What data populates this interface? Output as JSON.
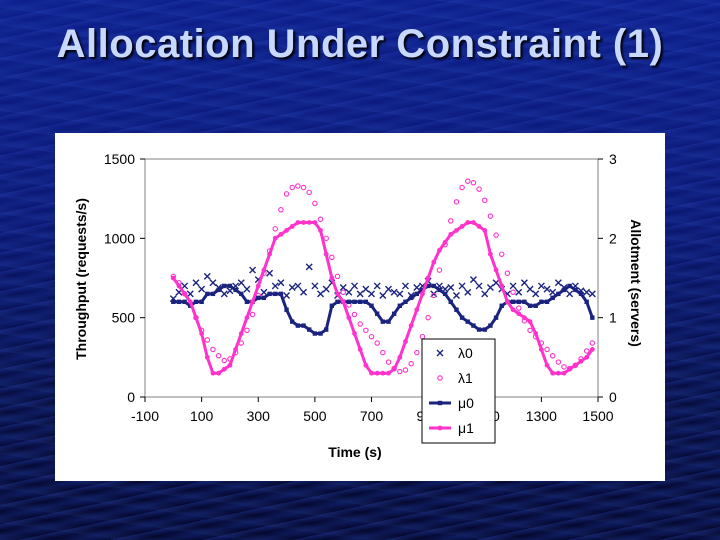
{
  "slide": {
    "title": "Allocation Under Constraint (1)"
  },
  "colors": {
    "navy": "#1a237e",
    "magenta": "#ff33cc",
    "background": "#0a1670",
    "title": "#c9d8ff"
  },
  "chart_data": {
    "type": "scatter",
    "xlabel": "Time  (s)",
    "ylabel_left": "Throughput (requests/s)",
    "ylabel_right": "Allotment (servers)",
    "xlim": [
      -100,
      1500
    ],
    "ylim_left": [
      0,
      1500
    ],
    "ylim_right": [
      0,
      3
    ],
    "xticks": [
      "-100",
      "100",
      "300",
      "500",
      "700",
      "900",
      "1100",
      "1300",
      "1500"
    ],
    "yticks_left": [
      "0",
      "500",
      "1000",
      "1500"
    ],
    "yticks_right": [
      "0",
      "1",
      "2",
      "3"
    ],
    "legend_position": "bottom-right",
    "grid": false,
    "series": [
      {
        "name": "λ0",
        "marker": "x",
        "axis": "left",
        "style": "markers",
        "x": [
          0,
          20,
          40,
          60,
          80,
          100,
          120,
          140,
          160,
          180,
          200,
          220,
          240,
          260,
          280,
          300,
          320,
          340,
          360,
          380,
          400,
          420,
          440,
          460,
          480,
          500,
          520,
          540,
          560,
          580,
          600,
          620,
          640,
          660,
          680,
          700,
          720,
          740,
          760,
          780,
          800,
          820,
          840,
          860,
          880,
          900,
          920,
          940,
          960,
          980,
          1000,
          1020,
          1040,
          1060,
          1080,
          1100,
          1120,
          1140,
          1160,
          1180,
          1200,
          1220,
          1240,
          1260,
          1280,
          1300,
          1320,
          1340,
          1360,
          1380,
          1400,
          1420,
          1440,
          1460,
          1480
        ],
        "y": [
          620,
          660,
          700,
          650,
          720,
          680,
          760,
          720,
          690,
          650,
          670,
          700,
          720,
          680,
          800,
          740,
          660,
          780,
          700,
          720,
          640,
          690,
          700,
          660,
          820,
          700,
          650,
          680,
          720,
          640,
          690,
          660,
          700,
          650,
          680,
          650,
          700,
          640,
          680,
          660,
          650,
          700,
          640,
          690,
          700,
          730,
          650,
          700,
          680,
          690,
          640,
          700,
          660,
          740,
          700,
          650,
          690,
          720,
          680,
          650,
          700,
          660,
          720,
          680,
          650,
          700,
          680,
          660,
          720,
          690,
          650,
          700,
          670,
          660,
          650
        ]
      },
      {
        "name": "λ1",
        "marker": "o",
        "axis": "left",
        "style": "markers",
        "x": [
          0,
          20,
          40,
          60,
          80,
          100,
          120,
          140,
          160,
          180,
          200,
          220,
          240,
          260,
          280,
          300,
          320,
          340,
          360,
          380,
          400,
          420,
          440,
          460,
          480,
          500,
          520,
          540,
          560,
          580,
          600,
          620,
          640,
          660,
          680,
          700,
          720,
          740,
          760,
          780,
          800,
          820,
          840,
          860,
          880,
          900,
          920,
          940,
          960,
          980,
          1000,
          1020,
          1040,
          1060,
          1080,
          1100,
          1120,
          1140,
          1160,
          1180,
          1200,
          1220,
          1240,
          1260,
          1280,
          1300,
          1320,
          1340,
          1360,
          1380,
          1400,
          1420,
          1440,
          1460,
          1480
        ],
        "y": [
          760,
          720,
          650,
          580,
          500,
          420,
          360,
          300,
          260,
          230,
          240,
          280,
          340,
          420,
          520,
          640,
          780,
          920,
          1060,
          1180,
          1280,
          1320,
          1330,
          1320,
          1290,
          1220,
          1120,
          1000,
          880,
          760,
          660,
          580,
          520,
          460,
          420,
          380,
          340,
          280,
          220,
          180,
          160,
          170,
          210,
          280,
          380,
          500,
          640,
          800,
          960,
          1110,
          1230,
          1320,
          1360,
          1350,
          1310,
          1240,
          1140,
          1020,
          900,
          780,
          660,
          560,
          480,
          420,
          380,
          340,
          300,
          260,
          220,
          190,
          180,
          200,
          240,
          290,
          340
        ]
      },
      {
        "name": "μ0",
        "marker": "square",
        "axis": "right",
        "style": "line",
        "x": [
          0,
          20,
          40,
          60,
          80,
          100,
          120,
          140,
          160,
          180,
          200,
          220,
          240,
          260,
          280,
          300,
          320,
          340,
          360,
          380,
          400,
          420,
          440,
          460,
          480,
          500,
          520,
          540,
          560,
          580,
          600,
          620,
          640,
          660,
          680,
          700,
          720,
          740,
          760,
          780,
          800,
          820,
          840,
          860,
          880,
          900,
          920,
          940,
          960,
          980,
          1000,
          1020,
          1040,
          1060,
          1080,
          1100,
          1120,
          1140,
          1160,
          1180,
          1200,
          1220,
          1240,
          1260,
          1280,
          1300,
          1320,
          1340,
          1360,
          1380,
          1400,
          1420,
          1440,
          1460,
          1480
        ],
        "y": [
          1.2,
          1.2,
          1.2,
          1.15,
          1.2,
          1.2,
          1.3,
          1.3,
          1.35,
          1.4,
          1.4,
          1.35,
          1.3,
          1.2,
          1.2,
          1.25,
          1.25,
          1.3,
          1.3,
          1.3,
          1.1,
          0.95,
          0.9,
          0.9,
          0.85,
          0.8,
          0.8,
          0.85,
          1.15,
          1.2,
          1.2,
          1.2,
          1.2,
          1.2,
          1.2,
          1.15,
          1.05,
          0.95,
          0.95,
          1.05,
          1.15,
          1.2,
          1.25,
          1.3,
          1.35,
          1.4,
          1.4,
          1.35,
          1.3,
          1.2,
          1.1,
          1.0,
          0.95,
          0.9,
          0.85,
          0.85,
          0.9,
          1.0,
          1.15,
          1.2,
          1.2,
          1.2,
          1.2,
          1.15,
          1.15,
          1.2,
          1.2,
          1.25,
          1.3,
          1.35,
          1.4,
          1.35,
          1.3,
          1.2,
          1.0
        ]
      },
      {
        "name": "μ1",
        "marker": "circle",
        "axis": "right",
        "style": "line",
        "x": [
          0,
          20,
          40,
          60,
          80,
          100,
          120,
          140,
          160,
          180,
          200,
          220,
          240,
          260,
          280,
          300,
          320,
          340,
          360,
          380,
          400,
          420,
          440,
          460,
          480,
          500,
          520,
          540,
          560,
          580,
          600,
          620,
          640,
          660,
          680,
          700,
          720,
          740,
          760,
          780,
          800,
          820,
          840,
          860,
          880,
          900,
          920,
          940,
          960,
          980,
          1000,
          1020,
          1040,
          1060,
          1080,
          1100,
          1120,
          1140,
          1160,
          1180,
          1200,
          1220,
          1240,
          1260,
          1280,
          1300,
          1320,
          1340,
          1360,
          1380,
          1400,
          1420,
          1440,
          1460,
          1480
        ],
        "y": [
          1.5,
          1.4,
          1.3,
          1.2,
          1.0,
          0.8,
          0.5,
          0.3,
          0.3,
          0.35,
          0.4,
          0.6,
          0.8,
          1.0,
          1.2,
          1.4,
          1.6,
          1.8,
          2.0,
          2.05,
          2.1,
          2.15,
          2.2,
          2.2,
          2.2,
          2.2,
          2.1,
          1.8,
          1.5,
          1.3,
          1.2,
          1.0,
          0.8,
          0.6,
          0.4,
          0.3,
          0.3,
          0.3,
          0.3,
          0.35,
          0.5,
          0.7,
          0.9,
          1.1,
          1.3,
          1.5,
          1.7,
          1.85,
          1.95,
          2.05,
          2.1,
          2.15,
          2.2,
          2.2,
          2.15,
          2.1,
          1.8,
          1.6,
          1.4,
          1.2,
          1.1,
          1.05,
          1.0,
          0.95,
          0.8,
          0.6,
          0.4,
          0.3,
          0.3,
          0.3,
          0.35,
          0.4,
          0.45,
          0.5,
          0.6
        ]
      }
    ]
  }
}
